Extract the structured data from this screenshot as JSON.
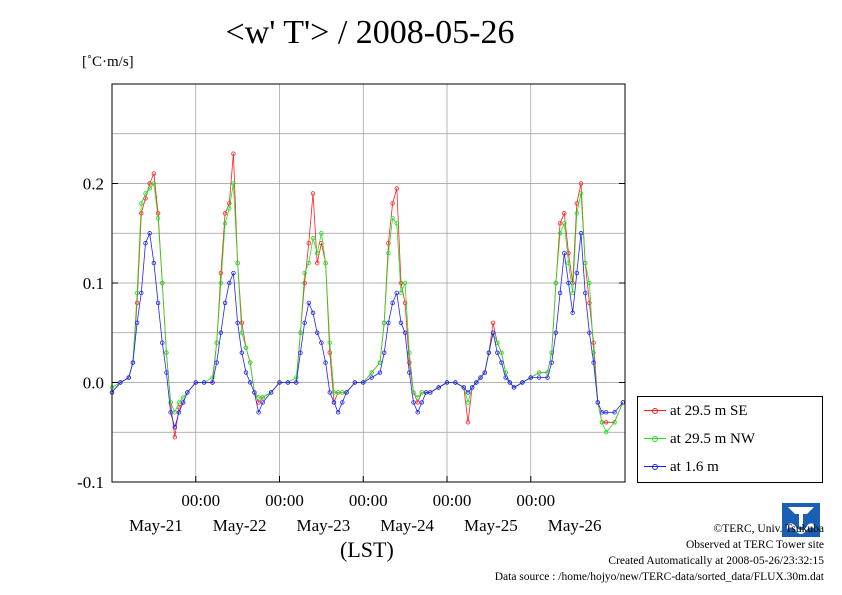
{
  "title": "<w' T'> / 2008-05-26",
  "unit_label": "[˚C·m/s]",
  "xlabel": "(LST)",
  "credits": {
    "copyright": "©TERC, Univ. Tsukuba",
    "site": "Observed at TERC Tower site",
    "created": "Created Automatically at 2008-05-26/23:32:15",
    "source": "Data source : /home/hojyo/new/TERC-data/sorted_data/FLUX.30m.dat"
  },
  "logo_text": "TERC",
  "colors": {
    "se": "#ff2020",
    "nw": "#20e020",
    "m16": "#2020ff",
    "grid": "#9a9a9a"
  },
  "chart_data": {
    "type": "line",
    "title": "<w' T'> / 2008-05-26",
    "ylabel": "[˚C·m/s]",
    "xlabel": "(LST)",
    "ylim": [
      -0.1,
      0.3
    ],
    "xlim_days": [
      20.0,
      26.125
    ],
    "yticks": [
      {
        "value": -0.1,
        "label": "-0.1"
      },
      {
        "value": 0.0,
        "label": "0.0"
      },
      {
        "value": 0.1,
        "label": "0.1"
      },
      {
        "value": 0.2,
        "label": "0.2"
      }
    ],
    "time_ticks": [
      {
        "day": 21,
        "label": "00:00"
      },
      {
        "day": 22,
        "label": "00:00"
      },
      {
        "day": 23,
        "label": "00:00"
      },
      {
        "day": 24,
        "label": "00:00"
      },
      {
        "day": 25,
        "label": "00:00"
      }
    ],
    "day_labels": [
      {
        "day": 20.5,
        "label": "May-21"
      },
      {
        "day": 21.5,
        "label": "May-22"
      },
      {
        "day": 22.5,
        "label": "May-23"
      },
      {
        "day": 23.5,
        "label": "May-24"
      },
      {
        "day": 24.5,
        "label": "May-25"
      },
      {
        "day": 25.5,
        "label": "May-26"
      }
    ],
    "grid": true,
    "legend_position": "right",
    "series": [
      {
        "name": "at 29.5 m SE",
        "color": "#ff2020",
        "x": [
          20.0,
          20.1,
          20.2,
          20.25,
          20.3,
          20.35,
          20.4,
          20.45,
          20.5,
          20.55,
          20.6,
          20.65,
          20.7,
          20.75,
          20.8,
          20.85,
          20.9,
          21.0,
          21.1,
          21.2,
          21.25,
          21.3,
          21.35,
          21.4,
          21.45,
          21.5,
          21.55,
          21.6,
          21.65,
          21.7,
          21.75,
          21.8,
          21.9,
          22.0,
          22.1,
          22.2,
          22.25,
          22.3,
          22.35,
          22.4,
          22.45,
          22.5,
          22.55,
          22.6,
          22.65,
          22.7,
          22.75,
          22.8,
          22.9,
          23.0,
          23.1,
          23.2,
          23.25,
          23.3,
          23.35,
          23.4,
          23.45,
          23.5,
          23.55,
          23.6,
          23.65,
          23.7,
          23.75,
          23.8,
          23.9,
          24.0,
          24.1,
          24.2,
          24.25,
          24.3,
          24.35,
          24.4,
          24.45,
          24.5,
          24.55,
          24.6,
          24.65,
          24.7,
          24.75,
          24.8,
          24.9,
          25.0,
          25.1,
          25.2,
          25.25,
          25.3,
          25.35,
          25.4,
          25.45,
          25.5,
          25.55,
          25.6,
          25.65,
          25.7,
          25.75,
          25.8,
          25.85,
          25.9,
          26.0,
          26.1
        ],
        "y": [
          -0.01,
          0.0,
          0.005,
          0.02,
          0.08,
          0.17,
          0.185,
          0.2,
          0.21,
          0.17,
          0.1,
          0.03,
          -0.02,
          -0.055,
          -0.025,
          -0.02,
          -0.01,
          0.0,
          0.0,
          0.0,
          0.04,
          0.11,
          0.17,
          0.18,
          0.23,
          0.12,
          0.06,
          0.035,
          0.02,
          -0.01,
          -0.02,
          -0.015,
          -0.01,
          0.0,
          0.0,
          0.0,
          0.05,
          0.1,
          0.14,
          0.19,
          0.12,
          0.14,
          0.12,
          0.03,
          -0.02,
          -0.01,
          -0.01,
          -0.01,
          0.0,
          0.0,
          0.01,
          0.02,
          0.06,
          0.14,
          0.18,
          0.195,
          0.1,
          0.08,
          0.02,
          -0.01,
          -0.02,
          -0.01,
          -0.01,
          -0.01,
          -0.005,
          0.0,
          0.0,
          -0.005,
          -0.04,
          -0.005,
          0.0,
          0.005,
          0.01,
          0.03,
          0.06,
          0.04,
          0.03,
          0.01,
          0.0,
          -0.005,
          0.0,
          0.005,
          0.01,
          0.01,
          0.03,
          0.1,
          0.16,
          0.17,
          0.13,
          0.1,
          0.18,
          0.2,
          0.12,
          0.08,
          0.04,
          -0.02,
          -0.04,
          -0.04,
          -0.04,
          -0.02
        ]
      },
      {
        "name": "at 29.5 m NW",
        "color": "#20e020",
        "x": [
          20.0,
          20.1,
          20.2,
          20.25,
          20.3,
          20.35,
          20.4,
          20.45,
          20.5,
          20.55,
          20.6,
          20.65,
          20.7,
          20.75,
          20.8,
          20.85,
          20.9,
          21.0,
          21.1,
          21.2,
          21.25,
          21.3,
          21.35,
          21.4,
          21.45,
          21.5,
          21.55,
          21.6,
          21.65,
          21.7,
          21.75,
          21.8,
          21.9,
          22.0,
          22.1,
          22.2,
          22.25,
          22.3,
          22.35,
          22.4,
          22.45,
          22.5,
          22.55,
          22.6,
          22.65,
          22.7,
          22.75,
          22.8,
          22.9,
          23.0,
          23.1,
          23.2,
          23.25,
          23.3,
          23.35,
          23.4,
          23.45,
          23.5,
          23.55,
          23.6,
          23.65,
          23.7,
          23.75,
          23.8,
          23.9,
          24.0,
          24.1,
          24.2,
          24.25,
          24.3,
          24.35,
          24.4,
          24.45,
          24.5,
          24.55,
          24.6,
          24.65,
          24.7,
          24.75,
          24.8,
          24.9,
          25.0,
          25.1,
          25.2,
          25.25,
          25.3,
          25.35,
          25.4,
          25.45,
          25.5,
          25.55,
          25.6,
          25.65,
          25.7,
          25.75,
          25.8,
          25.85,
          25.9,
          26.0,
          26.1
        ],
        "y": [
          -0.005,
          0.0,
          0.005,
          0.02,
          0.09,
          0.18,
          0.19,
          0.195,
          0.2,
          0.165,
          0.1,
          0.03,
          -0.02,
          -0.03,
          -0.02,
          -0.015,
          -0.01,
          0.0,
          0.0,
          0.005,
          0.04,
          0.1,
          0.16,
          0.175,
          0.2,
          0.12,
          0.05,
          0.035,
          0.02,
          -0.01,
          -0.015,
          -0.015,
          -0.01,
          0.0,
          0.0,
          0.005,
          0.05,
          0.11,
          0.12,
          0.145,
          0.13,
          0.15,
          0.12,
          0.04,
          -0.01,
          -0.01,
          -0.01,
          -0.01,
          0.0,
          0.0,
          0.01,
          0.02,
          0.06,
          0.13,
          0.165,
          0.16,
          0.09,
          0.1,
          0.03,
          -0.01,
          -0.015,
          -0.01,
          -0.01,
          -0.01,
          -0.005,
          0.0,
          0.0,
          -0.005,
          -0.02,
          -0.005,
          0.0,
          0.005,
          0.01,
          0.03,
          0.05,
          0.04,
          0.03,
          0.01,
          0.0,
          -0.005,
          0.0,
          0.005,
          0.01,
          0.01,
          0.03,
          0.1,
          0.15,
          0.16,
          0.12,
          0.09,
          0.17,
          0.19,
          0.12,
          0.1,
          0.03,
          -0.02,
          -0.04,
          -0.05,
          -0.04,
          -0.02
        ]
      },
      {
        "name": "at 1.6 m",
        "color": "#2020ff",
        "x": [
          20.0,
          20.1,
          20.2,
          20.25,
          20.3,
          20.35,
          20.4,
          20.45,
          20.5,
          20.55,
          20.6,
          20.65,
          20.7,
          20.75,
          20.8,
          20.85,
          20.9,
          21.0,
          21.1,
          21.2,
          21.25,
          21.3,
          21.35,
          21.4,
          21.45,
          21.5,
          21.55,
          21.6,
          21.65,
          21.7,
          21.75,
          21.8,
          21.9,
          22.0,
          22.1,
          22.2,
          22.25,
          22.3,
          22.35,
          22.4,
          22.45,
          22.5,
          22.55,
          22.6,
          22.65,
          22.7,
          22.75,
          22.8,
          22.9,
          23.0,
          23.1,
          23.2,
          23.25,
          23.3,
          23.35,
          23.4,
          23.45,
          23.5,
          23.55,
          23.6,
          23.65,
          23.7,
          23.75,
          23.8,
          23.9,
          24.0,
          24.1,
          24.2,
          24.25,
          24.3,
          24.35,
          24.4,
          24.45,
          24.5,
          24.55,
          24.6,
          24.65,
          24.7,
          24.75,
          24.8,
          24.9,
          25.0,
          25.1,
          25.2,
          25.25,
          25.3,
          25.35,
          25.4,
          25.45,
          25.5,
          25.55,
          25.6,
          25.65,
          25.7,
          25.75,
          25.8,
          25.85,
          25.9,
          26.0,
          26.1
        ],
        "y": [
          -0.01,
          0.0,
          0.005,
          0.02,
          0.06,
          0.09,
          0.14,
          0.15,
          0.12,
          0.08,
          0.04,
          0.01,
          -0.03,
          -0.045,
          -0.03,
          -0.02,
          -0.01,
          0.0,
          0.0,
          0.0,
          0.02,
          0.05,
          0.08,
          0.1,
          0.11,
          0.06,
          0.03,
          0.01,
          0.0,
          -0.01,
          -0.03,
          -0.02,
          -0.01,
          0.0,
          0.0,
          0.0,
          0.03,
          0.06,
          0.08,
          0.07,
          0.05,
          0.04,
          0.02,
          -0.01,
          -0.02,
          -0.03,
          -0.02,
          -0.01,
          0.0,
          0.0,
          0.005,
          0.01,
          0.03,
          0.06,
          0.08,
          0.09,
          0.06,
          0.05,
          0.01,
          -0.02,
          -0.03,
          -0.02,
          -0.01,
          -0.01,
          -0.005,
          0.0,
          0.0,
          -0.005,
          -0.01,
          -0.005,
          0.0,
          0.005,
          0.01,
          0.03,
          0.05,
          0.03,
          0.02,
          0.005,
          0.0,
          -0.005,
          0.0,
          0.005,
          0.005,
          0.005,
          0.02,
          0.05,
          0.09,
          0.13,
          0.1,
          0.07,
          0.11,
          0.15,
          0.09,
          0.05,
          0.02,
          -0.02,
          -0.03,
          -0.03,
          -0.03,
          -0.02
        ]
      }
    ]
  }
}
